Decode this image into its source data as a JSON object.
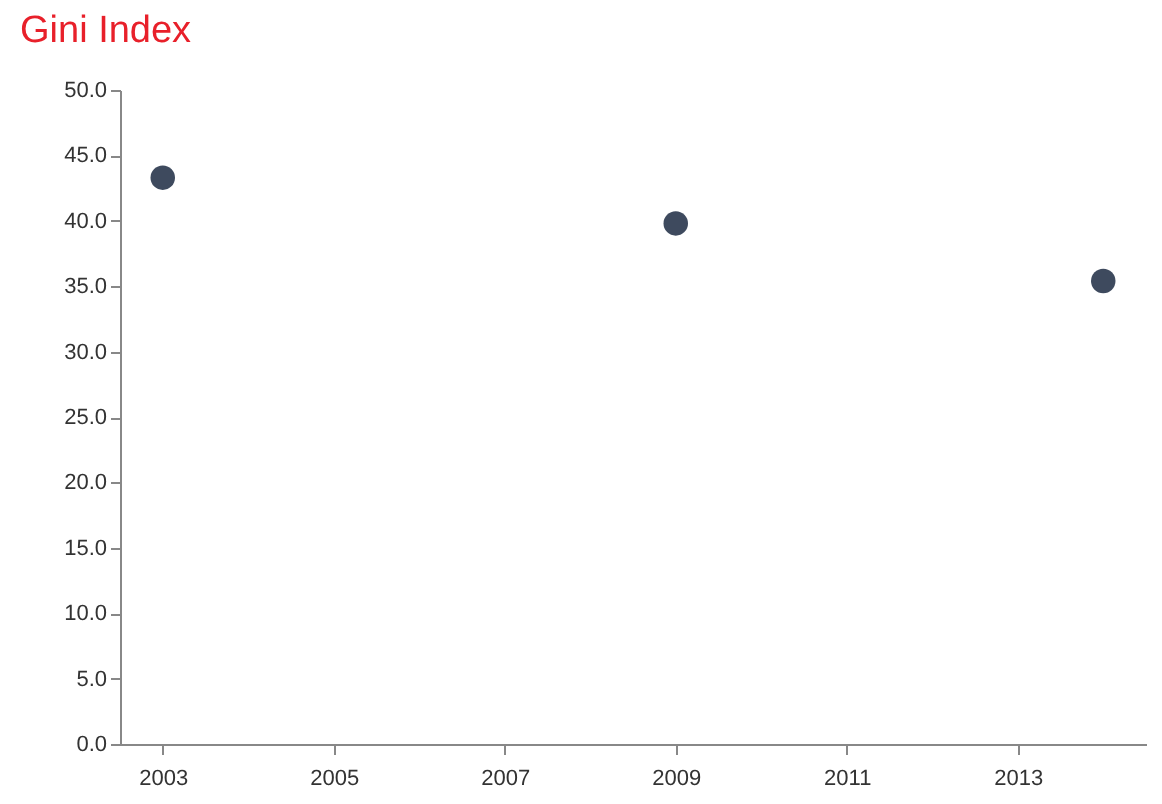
{
  "chart_data": {
    "type": "scatter",
    "title": "Gini Index",
    "x": [
      2003,
      2009,
      2014
    ],
    "series": [
      {
        "color": "#3e4a5e",
        "values": [
          43.3,
          39.8,
          35.4
        ]
      }
    ],
    "xlim": [
      2002.5,
      2014.5
    ],
    "xticks": [
      2003,
      2005,
      2007,
      2009,
      2011,
      2013
    ],
    "ylim": [
      0,
      50
    ],
    "yticks": [
      {
        "value": 0,
        "label": "0.0"
      },
      {
        "value": 5,
        "label": "5.0"
      },
      {
        "value": 10,
        "label": "10.0"
      },
      {
        "value": 15,
        "label": "15.0"
      },
      {
        "value": 20,
        "label": "20.0"
      },
      {
        "value": 25,
        "label": "25.0"
      },
      {
        "value": 30,
        "label": "30.0"
      },
      {
        "value": 35,
        "label": "35.0"
      },
      {
        "value": 40,
        "label": "40.0"
      },
      {
        "value": 45,
        "label": "45.0"
      },
      {
        "value": 50,
        "label": "50.0"
      }
    ],
    "grid": false,
    "marker": "circle"
  }
}
